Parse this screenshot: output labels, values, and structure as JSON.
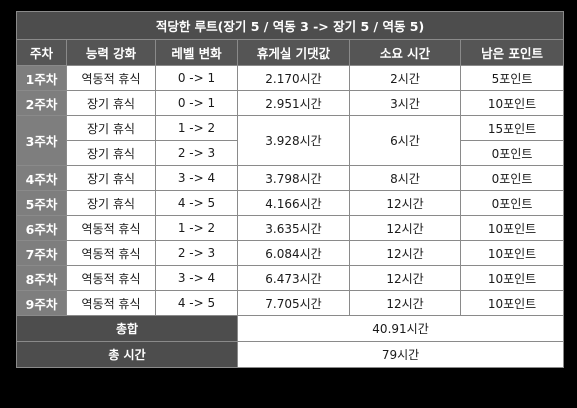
{
  "title": "적당한 루트(장기 5 / 역동 3 -> 장기 5 / 역동 5)",
  "headers": [
    "주차",
    "능력 강화",
    "레벨 변화",
    "휴게실 기댓값",
    "소요 시간",
    "남은 포인트"
  ],
  "rows": [
    {
      "week": "1주차",
      "skill": "역동적 휴식",
      "level": "0 -> 1",
      "expect": "2.170시간",
      "time": "2시간",
      "points": "5포인트"
    },
    {
      "week": "2주차",
      "skill": "장기 휴식",
      "level": "0 -> 1",
      "expect": "2.951시간",
      "time": "3시간",
      "points": "10포인트"
    },
    {
      "week": "3주차",
      "skill": "장기 휴식",
      "level": "1 -> 2",
      "expect": "3.928시간",
      "time": "6시간",
      "points": "15포인트",
      "skill2": "장기 휴식",
      "level2": "2 -> 3",
      "points2": "0포인트"
    },
    {
      "week": "4주차",
      "skill": "장기 휴식",
      "level": "3 -> 4",
      "expect": "3.798시간",
      "time": "8시간",
      "points": "0포인트"
    },
    {
      "week": "5주차",
      "skill": "장기 휴식",
      "level": "4 -> 5",
      "expect": "4.166시간",
      "time": "12시간",
      "points": "0포인트"
    },
    {
      "week": "6주차",
      "skill": "역동적 휴식",
      "level": "1 -> 2",
      "expect": "3.635시간",
      "time": "12시간",
      "points": "10포인트"
    },
    {
      "week": "7주차",
      "skill": "역동적 휴식",
      "level": "2 -> 3",
      "expect": "6.084시간",
      "time": "12시간",
      "points": "10포인트"
    },
    {
      "week": "8주차",
      "skill": "역동적 휴식",
      "level": "3 -> 4",
      "expect": "6.473시간",
      "time": "12시간",
      "points": "10포인트"
    },
    {
      "week": "9주차",
      "skill": "역동적 휴식",
      "level": "4 -> 5",
      "expect": "7.705시간",
      "time": "12시간",
      "points": "10포인트"
    }
  ],
  "footer": [
    {
      "label": "총합",
      "value": "40.91시간"
    },
    {
      "label": "총 시간",
      "value": "79시간"
    }
  ]
}
